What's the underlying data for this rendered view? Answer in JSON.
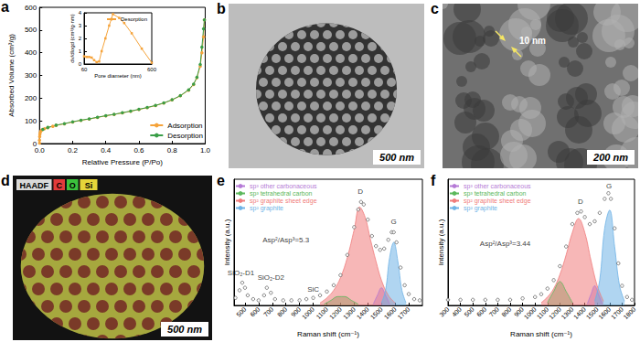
{
  "chart_data": [
    {
      "type": "line",
      "title": "a",
      "x_label": "Relative Pressure (P/Po)",
      "y_label": "Absorbed Volume (cm³/g)",
      "xlim": [
        0,
        1
      ],
      "xticks": [
        {
          "value": 0,
          "label": "0.0"
        },
        0.2,
        0.4,
        0.6,
        0.8,
        {
          "value": 1,
          "label": "1.0"
        }
      ],
      "ylim": [
        0,
        600
      ],
      "yticks": [
        0,
        100,
        200,
        300,
        400,
        500,
        600
      ],
      "marker": "circle",
      "legend": "lower right",
      "series": [
        {
          "name": "Adsorption",
          "color": "#f5a33a",
          "x": [
            0,
            0,
            0.001,
            0.002,
            0.004,
            0.008,
            0.015,
            0.03,
            0.05,
            0.08,
            0.1,
            0.15,
            0.2,
            0.25,
            0.3,
            0.35,
            0.4,
            0.45,
            0.5,
            0.55,
            0.6,
            0.65,
            0.7,
            0.75,
            0.8,
            0.85,
            0.9,
            0.93,
            0.95,
            0.97,
            0.98,
            0.99,
            0.995
          ],
          "values": [
            2,
            15,
            30,
            40,
            48,
            55,
            60,
            65,
            70,
            76,
            80,
            87,
            95,
            102,
            108,
            115,
            122,
            128,
            135,
            142,
            150,
            158,
            167,
            178,
            192,
            210,
            235,
            260,
            290,
            340,
            400,
            470,
            545
          ]
        },
        {
          "name": "Desorption",
          "color": "#3a9e48",
          "x": [
            0.995,
            0.99,
            0.98,
            0.97,
            0.95,
            0.93,
            0.9,
            0.85,
            0.8,
            0.75,
            0.7,
            0.65,
            0.6,
            0.55,
            0.5,
            0.45,
            0.4,
            0.35,
            0.3,
            0.25,
            0.2,
            0.15,
            0.1,
            0.05,
            0.02
          ],
          "values": [
            545,
            505,
            425,
            348,
            292,
            262,
            237,
            211,
            193,
            179,
            168,
            159,
            151,
            143,
            136,
            129,
            123,
            116,
            109,
            103,
            96,
            88,
            81,
            71,
            62
          ]
        }
      ]
    },
    {
      "type": "line",
      "x_label": "Pore diameter (nm)",
      "y_label": "dv/dlogd (cm³/g·nm)",
      "xlim": [
        60,
        600
      ],
      "xticks": [
        60,
        600
      ],
      "ylim": [
        0,
        4
      ],
      "yticks": [
        0,
        1,
        2,
        3,
        4
      ],
      "marker": "square",
      "legend": "upper right",
      "series": [
        {
          "name": "Desorption",
          "color": "#f5a33a",
          "x": [
            60,
            80,
            100,
            120,
            140,
            160,
            180,
            200,
            230,
            260,
            290,
            340,
            380,
            440,
            520,
            600
          ],
          "values": [
            0.6,
            0.55,
            0.55,
            0.5,
            0.3,
            0.15,
            0.2,
            1.0,
            2.0,
            3.0,
            3.9,
            3.6,
            3.2,
            2.4,
            1.2,
            0.1
          ]
        }
      ]
    },
    {
      "type": "line",
      "title": "e",
      "x_label": "Raman shift (cm⁻¹)",
      "y_label": "Intensity (a.u.)",
      "xlim": [
        420,
        1800
      ],
      "xticks": [
        500,
        600,
        700,
        800,
        900,
        1000,
        1100,
        1200,
        1300,
        1400,
        1500,
        1600,
        1700
      ],
      "ylim": [
        0,
        100
      ],
      "tick_labels": "x",
      "legend": "upper left",
      "series": [
        {
          "type": "scatter",
          "marker": "circle",
          "color": "#444444",
          "x": [
            430,
            460,
            480,
            500,
            520,
            560,
            600,
            640,
            660,
            690,
            720,
            780,
            840,
            900,
            950,
            1000,
            1050,
            1100,
            1150,
            1200,
            1250,
            1300,
            1330,
            1350,
            1370,
            1400,
            1430,
            1460,
            1490,
            1520,
            1550,
            1575,
            1590,
            1610,
            1640,
            1670,
            1700,
            1740,
            1780
          ],
          "values": [
            6,
            12,
            18,
            14,
            8,
            5,
            4,
            8,
            14,
            10,
            5,
            4,
            4,
            4,
            5,
            6,
            8,
            11,
            16,
            24,
            40,
            62,
            76,
            82,
            80,
            68,
            55,
            47,
            44,
            45,
            52,
            58,
            58,
            50,
            30,
            16,
            9,
            5,
            4
          ]
        },
        {
          "type": "area",
          "name": "sp³ other carbonaceous",
          "color": "#b57ad6",
          "x": [
            1440,
            1470,
            1500,
            1530,
            1560
          ],
          "values": [
            1,
            8,
            14,
            8,
            1
          ]
        },
        {
          "type": "area",
          "name": "sp³ tetrahedral carbon",
          "color": "#5cb85c",
          "x": [
            1080,
            1130,
            1180,
            1230,
            1280,
            1330
          ],
          "values": [
            1,
            4,
            7,
            7,
            4,
            1
          ]
        },
        {
          "type": "area",
          "name": "sp² graphite sheet edge",
          "color": "#f07c7c",
          "x": [
            1050,
            1100,
            1150,
            1200,
            1250,
            1300,
            1340,
            1380,
            1420,
            1460,
            1500,
            1550,
            1600
          ],
          "values": [
            2,
            6,
            12,
            22,
            38,
            60,
            78,
            70,
            52,
            35,
            20,
            8,
            2
          ]
        },
        {
          "type": "area",
          "name": "sp² graphite",
          "color": "#6fb3e6",
          "x": [
            1500,
            1530,
            1560,
            1590,
            1620,
            1650,
            1680
          ],
          "values": [
            2,
            12,
            38,
            50,
            35,
            12,
            2
          ]
        }
      ],
      "annotations": [
        {
          "text": "D",
          "x": 1345,
          "y": 90
        },
        {
          "text": "G",
          "x": 1590,
          "y": 66
        },
        {
          "text": "Asp²/Asp³=5.3",
          "x": 800,
          "y": 52
        },
        {
          "text": "SiO₂-D1",
          "x": 470,
          "y": 26
        },
        {
          "text": "SiO₂-D2",
          "x": 690,
          "y": 22
        },
        {
          "text": "SiC",
          "x": 1000,
          "y": 13
        }
      ]
    },
    {
      "type": "line",
      "title": "f",
      "x_label": "Raman shift (cm⁻¹)",
      "y_label": "Intensity (a.u.)",
      "xlim": [
        300,
        1800
      ],
      "xticks": [
        300,
        400,
        500,
        600,
        700,
        800,
        900,
        1000,
        1100,
        1200,
        1300,
        1400,
        1500,
        1600,
        1700,
        1800
      ],
      "ylim": [
        0,
        90
      ],
      "tick_labels": "x",
      "legend": "upper left",
      "series": [
        {
          "type": "scatter",
          "marker": "circle",
          "color": "#444444",
          "x": [
            300,
            400,
            500,
            600,
            700,
            800,
            900,
            1000,
            1050,
            1100,
            1150,
            1200,
            1250,
            1300,
            1340,
            1370,
            1400,
            1440,
            1480,
            1520,
            1560,
            1590,
            1610,
            1640,
            1670,
            1700,
            1740,
            1780
          ],
          "values": [
            4,
            4,
            4,
            4,
            4,
            4,
            5,
            6,
            8,
            12,
            18,
            28,
            42,
            58,
            66,
            67,
            63,
            58,
            60,
            66,
            76,
            80,
            76,
            55,
            30,
            14,
            6,
            4
          ]
        },
        {
          "type": "area",
          "name": "sp³ other carbonaceous",
          "color": "#b57ad6",
          "x": [
            1420,
            1450,
            1480,
            1510,
            1540
          ],
          "values": [
            1,
            8,
            14,
            8,
            1
          ]
        },
        {
          "type": "area",
          "name": "sp³ tetrahedral carbon",
          "color": "#5cb85c",
          "x": [
            1100,
            1150,
            1200,
            1250,
            1300
          ],
          "values": [
            2,
            10,
            17,
            10,
            2
          ]
        },
        {
          "type": "area",
          "name": "sp² graphite sheet edge",
          "color": "#f07c7c",
          "x": [
            1050,
            1100,
            1150,
            1200,
            1250,
            1300,
            1350,
            1400,
            1450,
            1500,
            1550
          ],
          "values": [
            2,
            6,
            12,
            22,
            36,
            52,
            62,
            52,
            32,
            14,
            3
          ]
        },
        {
          "type": "area",
          "name": "sp² graphite",
          "color": "#6fb3e6",
          "x": [
            1480,
            1520,
            1560,
            1600,
            1640,
            1680,
            1720
          ],
          "values": [
            3,
            18,
            55,
            68,
            42,
            14,
            3
          ]
        }
      ],
      "annotations": [
        {
          "text": "D",
          "x": 1365,
          "y": 74
        },
        {
          "text": "G",
          "x": 1595,
          "y": 85
        },
        {
          "text": "Asp²/Asp³=3.44",
          "x": 760,
          "y": 44
        }
      ]
    }
  ],
  "images": [
    {
      "panel": "b",
      "scale_bar": "500 nm"
    },
    {
      "panel": "c",
      "scale_bar": "200 nm",
      "annotation": "10 nm"
    },
    {
      "panel": "d",
      "scale_bar": "500 nm",
      "channels": [
        {
          "label": "HAADF",
          "color": "#d9d9d9"
        },
        {
          "label": "C",
          "color": "#e23b3b"
        },
        {
          "label": "O",
          "color": "#3cc23c"
        },
        {
          "label": "Si",
          "color": "#e6d43a"
        }
      ]
    }
  ]
}
